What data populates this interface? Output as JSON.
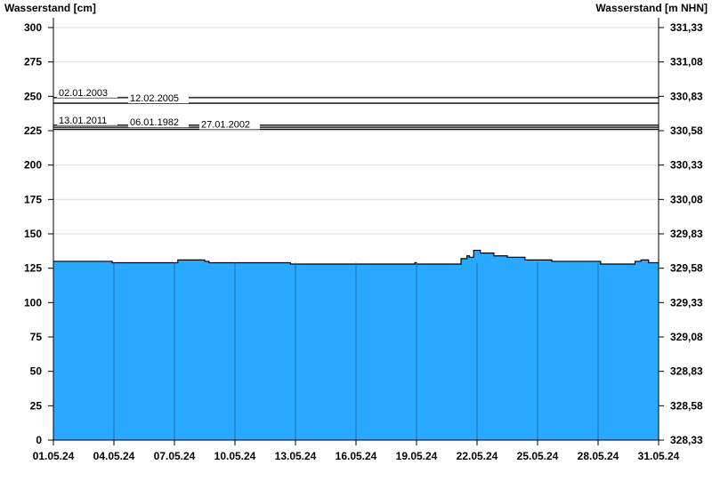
{
  "chart_data": {
    "type": "area",
    "ylabel_left": "Wasserstand [cm]",
    "ylabel_right": "Wasserstand [m NHN]",
    "ylim": [
      0,
      300
    ],
    "y_ticks": [
      0,
      25,
      50,
      75,
      100,
      125,
      150,
      175,
      200,
      225,
      250,
      275,
      300
    ],
    "y2_ticks": [
      "328,33",
      "328,58",
      "328,83",
      "329,08",
      "329,33",
      "329,58",
      "329,83",
      "330,08",
      "330,33",
      "330,58",
      "330,83",
      "331,08",
      "331,33"
    ],
    "x_ticks": [
      "01.05.24",
      "04.05.24",
      "07.05.24",
      "10.05.24",
      "13.05.24",
      "16.05.24",
      "19.05.24",
      "22.05.24",
      "25.05.24",
      "28.05.24",
      "31.05.24"
    ],
    "x_range": [
      "2024-05-01T00:00",
      "2024-05-31T00:00"
    ],
    "grid": true,
    "fill_color": "#29a9ff",
    "series": [
      {
        "points": [
          [
            "2024-05-01T00:00",
            130
          ],
          [
            "2024-05-03T21:00",
            130
          ],
          [
            "2024-05-03T22:00",
            129
          ],
          [
            "2024-05-06T23:00",
            129
          ],
          [
            "2024-05-07T04:00",
            131
          ],
          [
            "2024-05-08T12:00",
            130
          ],
          [
            "2024-05-08T17:00",
            129
          ],
          [
            "2024-05-12T17:00",
            129
          ],
          [
            "2024-05-12T18:00",
            128
          ],
          [
            "2024-05-18T20:00",
            128
          ],
          [
            "2024-05-18T22:00",
            129
          ],
          [
            "2024-05-19T00:00",
            128
          ],
          [
            "2024-05-21T02:00",
            128
          ],
          [
            "2024-05-21T05:00",
            132
          ],
          [
            "2024-05-21T12:00",
            134
          ],
          [
            "2024-05-21T15:00",
            133
          ],
          [
            "2024-05-21T20:00",
            138
          ],
          [
            "2024-05-22T04:00",
            136
          ],
          [
            "2024-05-22T20:00",
            134
          ],
          [
            "2024-05-23T12:00",
            133
          ],
          [
            "2024-05-24T09:00",
            131
          ],
          [
            "2024-05-25T17:00",
            130
          ],
          [
            "2024-05-27T17:00",
            130
          ],
          [
            "2024-05-28T03:00",
            128
          ],
          [
            "2024-05-29T11:00",
            128
          ],
          [
            "2024-05-29T20:00",
            130
          ],
          [
            "2024-05-30T03:00",
            131
          ],
          [
            "2024-05-30T12:00",
            129
          ],
          [
            "2024-05-31T00:00",
            129
          ]
        ]
      }
    ],
    "reference_lines": [
      {
        "label": "02.01.2003",
        "value": 249
      },
      {
        "label": "12.02.2005",
        "value": 245
      },
      {
        "label": "13.01.2011",
        "value": 229
      },
      {
        "label": "06.01.1982",
        "value": 227.5
      },
      {
        "label": "27.01.2002",
        "value": 226
      }
    ]
  }
}
